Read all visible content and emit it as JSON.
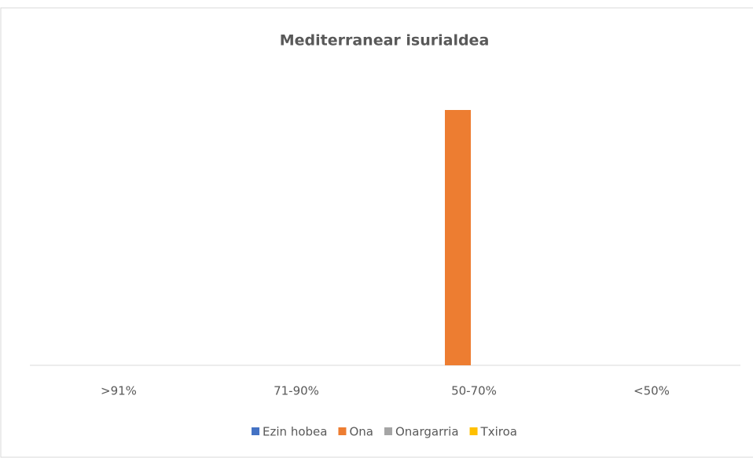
{
  "chart_data": {
    "type": "bar",
    "title": "Mediterranear isurialdea",
    "categories": [
      ">91%",
      "71-90%",
      "50-70%",
      "<50%"
    ],
    "series": [
      {
        "name": "Ezin hobea",
        "color": "#4472c4",
        "values": [
          0,
          0,
          0,
          0
        ]
      },
      {
        "name": "Ona",
        "color": "#ed7d31",
        "values": [
          0,
          0,
          1,
          0
        ]
      },
      {
        "name": "Onargarria",
        "color": "#a5a5a5",
        "values": [
          0,
          0,
          0,
          0
        ]
      },
      {
        "name": "Txiroa",
        "color": "#ffc000",
        "values": [
          0,
          0,
          0,
          0
        ]
      }
    ],
    "ylim": [
      0,
      1.2
    ],
    "legend": "bottom"
  }
}
